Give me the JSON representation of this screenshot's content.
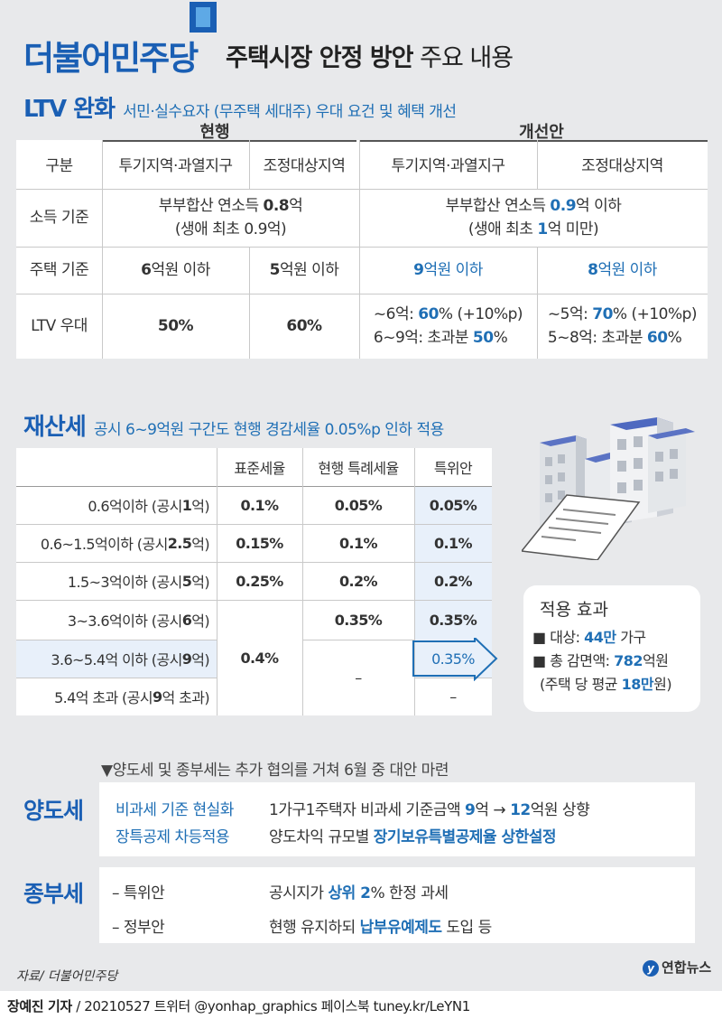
{
  "header": {
    "brand": "더불어민주당",
    "headline_bold": "주택시장 안정 방안",
    "headline_rest": " 주요 내용"
  },
  "ltv": {
    "title": "LTV 완화",
    "subtitle": "서민·실수요자 (무주택 세대주) 우대 요건 및 혜택 개선",
    "group_current": "현행",
    "group_improved": "개선안",
    "col_headers": [
      "구분",
      "투기지역·과열지구",
      "조정대상지역",
      "투기지역·과열지구",
      "조정대상지역"
    ],
    "row_labels": [
      "소득 기준",
      "주택 기준",
      "LTV 우대"
    ],
    "income_current_1": "부부합산 연소득 ",
    "income_current_num": "0.8",
    "income_current_2": "억",
    "income_current_line2": "(생애 최초 0.9억)",
    "income_improved_1": "부부합산 연소득 ",
    "income_improved_num": "0.9",
    "income_improved_2": "억 이하",
    "income_improved_line2a": "(생애 최초 ",
    "income_improved_line2num": "1",
    "income_improved_line2b": "억 미만)",
    "house_cur_a_num": "6",
    "house_cur_b_num": "5",
    "house_imp_a_num": "9",
    "house_imp_b_num": "8",
    "house_unit": "억원 이하",
    "ltv_cur_a": "50%",
    "ltv_cur_b": "60%",
    "ltv_imp_a1_pre": "~6억: ",
    "ltv_imp_a1_num": "60",
    "ltv_imp_a1_post": "% (+10%p)",
    "ltv_imp_a2_pre": "6~9억: 초과분 ",
    "ltv_imp_a2_num": "50",
    "ltv_imp_a2_post": "%",
    "ltv_imp_b1_pre": "~5억: ",
    "ltv_imp_b1_num": "70",
    "ltv_imp_b1_post": "% (+10%p)",
    "ltv_imp_b2_pre": "5~8억: 초과분 ",
    "ltv_imp_b2_num": "60",
    "ltv_imp_b2_post": "%"
  },
  "tax": {
    "title": "재산세",
    "subtitle": "공시 6~9억원 구간도 현행 경감세율 0.05%p 인하 적용",
    "headers": [
      "표준세율",
      "현행 특례세율",
      "특위안"
    ],
    "rows": [
      {
        "label": "0.6억이하 (공시 ",
        "num": "1",
        "tail": "억)",
        "std": "0.1%",
        "cur": "0.05%",
        "prop": "0.05%"
      },
      {
        "label": "0.6~1.5억이하 (공시 ",
        "num": "2.5",
        "tail": "억)",
        "std": "0.15%",
        "cur": "0.1%",
        "prop": "0.1%"
      },
      {
        "label": "1.5~3억이하 (공시 ",
        "num": "5",
        "tail": "억)",
        "std": "0.25%",
        "cur": "0.2%",
        "prop": "0.2%"
      },
      {
        "label": "3~3.6억이하 (공시 ",
        "num": "6",
        "tail": "억)",
        "std": "",
        "cur": "0.35%",
        "prop": "0.35%"
      },
      {
        "label": "3.6~5.4억 이하 (공시 ",
        "num": "9",
        "tail": "억)",
        "std": "",
        "cur": "",
        "prop": "0.35%"
      },
      {
        "label": "5.4억 초과 (공시 ",
        "num": "9",
        "tail": "억 초과)",
        "std": "",
        "cur": "",
        "prop": "–"
      }
    ],
    "std_merged": "0.4%",
    "cur_merged": "–"
  },
  "effect": {
    "title": "적용 효과",
    "line1_pre": "■ 대상: ",
    "line1_num": "44만",
    "line1_post": " 가구",
    "line2_pre": "■ 총 감면액: ",
    "line2_num": "782",
    "line2_post": "억원",
    "line3_pre": "(주택 당 평균 ",
    "line3_num": "18만",
    "line3_post": "원)"
  },
  "notice": "▼양도세 및 종부세는 추가 협의를 거쳐 6월 중 대안 마련",
  "transfer": {
    "title": "양도세",
    "r1_label": "비과세 기준 현실화",
    "r1_text_pre": "1가구1주택자 비과세 기준금액 ",
    "r1_num1": "9",
    "r1_mid": "억 → ",
    "r1_num2": "12",
    "r1_post": "억원 상향",
    "r2_label": "장특공제 차등적용",
    "r2_text_pre": "양도차익 규모별 ",
    "r2_text_hl": "장기보유특별공제율 상한설정"
  },
  "comp": {
    "title": "종부세",
    "r1_label": "– 특위안",
    "r1_pre": "공시지가 ",
    "r1_hl": "상위 2",
    "r1_post": "% 한정 과세",
    "r2_label": "– 정부안",
    "r2_pre": "현행 유지하되 ",
    "r2_hl": "납부유예제도",
    "r2_post": " 도입 등"
  },
  "source": "자료/ 더불어민주당",
  "logo": "연합뉴스",
  "credit_name": "장예진 기자",
  "credit_rest": " / 20210527 트위터 @yonhap_graphics  페이스북 tuney.kr/LeYN1",
  "colors": {
    "accent": "#1a5fb4",
    "highlight": "#1f6fb5",
    "background": "#e8e9eb"
  }
}
